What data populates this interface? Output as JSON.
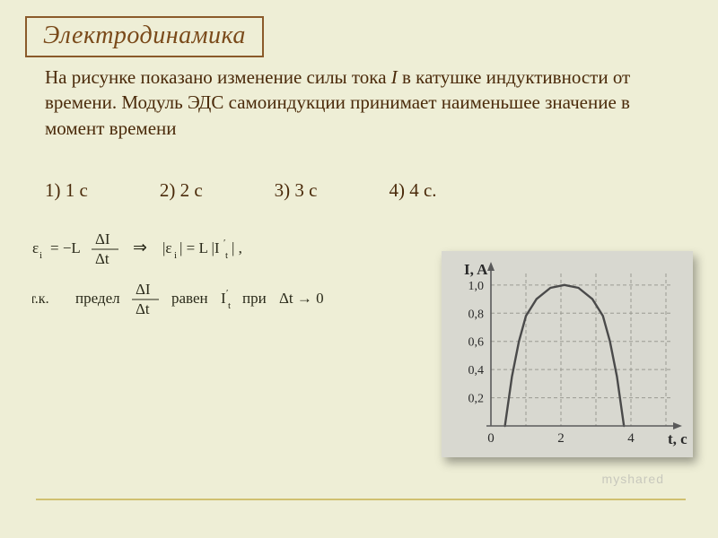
{
  "title": "Электродинамика",
  "question_part1": "На рисунке показано изменение силы тока ",
  "question_I": "I",
  "question_part2": " в катушке индуктивности от времени. Модуль ЭДС самоиндукции принимает наименьшее значение в момент времени",
  "options": {
    "o1": "1) 1 с",
    "o2": "2) 2 с",
    "o3": "3) 3 с",
    "o4": "4) 4 с."
  },
  "formula": {
    "because": "т.к.",
    "predel": "предел",
    "raven": "равен",
    "pri": "при"
  },
  "chart": {
    "ylabel": "I, A",
    "xlabel": "t, c",
    "y_ticks": [
      "1,0",
      "0,8",
      "0,6",
      "0,4",
      "0,2"
    ],
    "x_ticks": [
      "0",
      "2",
      "4"
    ],
    "xlim": [
      0,
      5
    ],
    "ylim": [
      0,
      1.05
    ],
    "curve": {
      "type": "parabola",
      "points": [
        [
          0.4,
          0
        ],
        [
          0.6,
          0.35
        ],
        [
          0.8,
          0.6
        ],
        [
          1.0,
          0.78
        ],
        [
          1.3,
          0.9
        ],
        [
          1.7,
          0.98
        ],
        [
          2.1,
          1.0
        ],
        [
          2.5,
          0.98
        ],
        [
          2.9,
          0.9
        ],
        [
          3.2,
          0.78
        ],
        [
          3.4,
          0.6
        ],
        [
          3.6,
          0.35
        ],
        [
          3.8,
          0
        ]
      ]
    },
    "axis_color": "#5a5a5a",
    "grid_color": "#9a9a92",
    "curve_color": "#4a4a4a",
    "label_color": "#2a2a2a",
    "bg_color": "#d8d8d0"
  },
  "watermark": "myshared"
}
